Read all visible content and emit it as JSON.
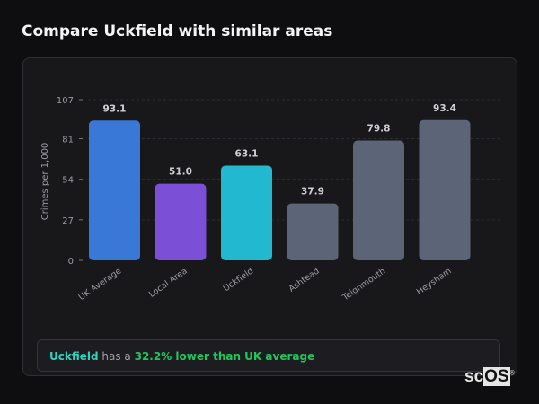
{
  "title": "Compare Uckfield with similar areas",
  "chart_data": {
    "type": "bar",
    "categories": [
      "UK Average",
      "Local Area",
      "Uckfield",
      "Ashtead",
      "Teignmouth",
      "Heysham"
    ],
    "values": [
      93.1,
      51.0,
      63.1,
      37.9,
      79.8,
      93.4
    ],
    "value_labels": [
      "93.1",
      "51.0",
      "63.1",
      "37.9",
      "79.8",
      "93.4"
    ],
    "colors": [
      "#3a78d8",
      "#7b4fd6",
      "#22b8cf",
      "#5b6577",
      "#5b6577",
      "#5b6577"
    ],
    "ylabel": "Crimes per 1,000",
    "xlabel": "",
    "ylim": [
      0,
      107
    ],
    "yticks": [
      0,
      27,
      54,
      81,
      107
    ],
    "grid": true
  },
  "summary": {
    "area": "Uckfield",
    "middle": " has a ",
    "comparison": "32.2% lower than UK average"
  },
  "logo": {
    "text1": "sc",
    "text2": "OS",
    "mark": "®"
  }
}
